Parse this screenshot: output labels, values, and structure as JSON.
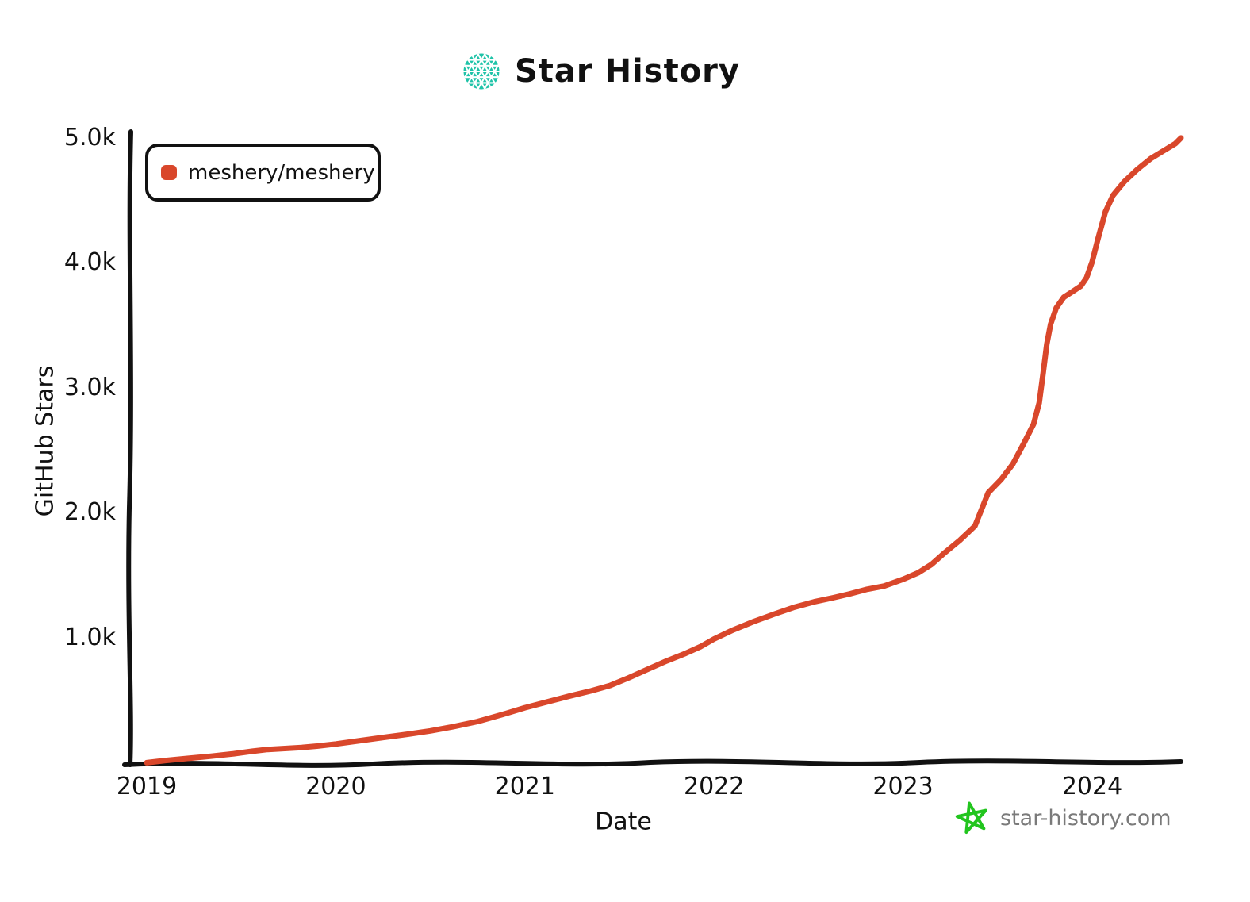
{
  "header": {
    "title": "Star History",
    "logo_icon": "star-history-logo",
    "logo_color": "#1fc3a8"
  },
  "legend": {
    "items": [
      {
        "label": "meshery/meshery",
        "color": "#d9472b"
      }
    ]
  },
  "footer": {
    "site_label": "star-history.com",
    "star_icon_color": "#22c51e",
    "text_color": "#7a7a7a"
  },
  "chart_data": {
    "type": "line",
    "title": "Star History",
    "xlabel": "Date",
    "ylabel": "GitHub Stars",
    "x_ticks": [
      "2019",
      "2020",
      "2021",
      "2022",
      "2023",
      "2024"
    ],
    "y_ticks": [
      "1.0k",
      "2.0k",
      "3.0k",
      "4.0k",
      "5.0k"
    ],
    "x_range": [
      2018.9,
      2024.6
    ],
    "y_range": [
      0,
      5100
    ],
    "grid": false,
    "legend_position": "top-left",
    "style": "hand-drawn",
    "series": [
      {
        "name": "meshery/meshery",
        "color": "#d9472b",
        "points": [
          [
            2019.0,
            10
          ],
          [
            2019.1,
            28
          ],
          [
            2019.22,
            45
          ],
          [
            2019.34,
            62
          ],
          [
            2019.46,
            82
          ],
          [
            2019.56,
            102
          ],
          [
            2019.64,
            116
          ],
          [
            2019.73,
            124
          ],
          [
            2019.82,
            132
          ],
          [
            2019.9,
            143
          ],
          [
            2020.0,
            160
          ],
          [
            2020.12,
            185
          ],
          [
            2020.25,
            212
          ],
          [
            2020.38,
            238
          ],
          [
            2020.5,
            265
          ],
          [
            2020.62,
            298
          ],
          [
            2020.75,
            340
          ],
          [
            2020.88,
            395
          ],
          [
            2021.0,
            450
          ],
          [
            2021.12,
            498
          ],
          [
            2021.24,
            545
          ],
          [
            2021.35,
            585
          ],
          [
            2021.45,
            628
          ],
          [
            2021.55,
            690
          ],
          [
            2021.65,
            758
          ],
          [
            2021.75,
            825
          ],
          [
            2021.85,
            885
          ],
          [
            2021.93,
            940
          ],
          [
            2022.0,
            1000
          ],
          [
            2022.1,
            1072
          ],
          [
            2022.21,
            1140
          ],
          [
            2022.32,
            1200
          ],
          [
            2022.42,
            1252
          ],
          [
            2022.53,
            1298
          ],
          [
            2022.63,
            1330
          ],
          [
            2022.72,
            1362
          ],
          [
            2022.81,
            1398
          ],
          [
            2022.9,
            1424
          ],
          [
            2023.0,
            1478
          ],
          [
            2023.08,
            1530
          ],
          [
            2023.15,
            1597
          ],
          [
            2023.22,
            1690
          ],
          [
            2023.3,
            1790
          ],
          [
            2023.38,
            1905
          ],
          [
            2023.45,
            2170
          ],
          [
            2023.52,
            2280
          ],
          [
            2023.58,
            2400
          ],
          [
            2023.64,
            2570
          ],
          [
            2023.69,
            2720
          ],
          [
            2023.72,
            2890
          ],
          [
            2023.74,
            3120
          ],
          [
            2023.76,
            3360
          ],
          [
            2023.78,
            3520
          ],
          [
            2023.81,
            3650
          ],
          [
            2023.85,
            3735
          ],
          [
            2023.9,
            3785
          ],
          [
            2023.94,
            3825
          ],
          [
            2023.97,
            3890
          ],
          [
            2024.0,
            4020
          ],
          [
            2024.03,
            4200
          ],
          [
            2024.07,
            4420
          ],
          [
            2024.11,
            4550
          ],
          [
            2024.17,
            4660
          ],
          [
            2024.24,
            4760
          ],
          [
            2024.31,
            4845
          ],
          [
            2024.38,
            4910
          ],
          [
            2024.44,
            4965
          ],
          [
            2024.47,
            5010
          ]
        ]
      }
    ]
  }
}
